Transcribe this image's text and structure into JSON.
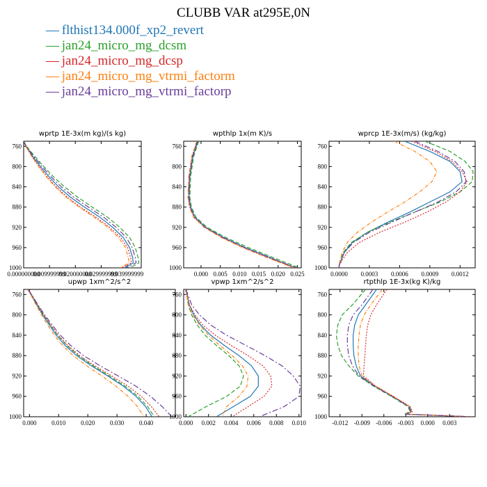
{
  "figure": {
    "title": "CLUBB VAR at295E,0N"
  },
  "legend": [
    {
      "label": "flthist134.000f_xp2_revert",
      "color": "#1f77b4"
    },
    {
      "label": "jan24_micro_mg_dcsm",
      "color": "#2ca02c"
    },
    {
      "label": "jan24_micro_mg_dcsp",
      "color": "#d62728"
    },
    {
      "label": "jan24_micro_mg_vtrmi_factorm",
      "color": "#ff7f0e"
    },
    {
      "label": "jan24_micro_mg_vtrmi_factorp",
      "color": "#6a3d9a"
    }
  ],
  "chart_data": [
    {
      "type": "line",
      "title": "wprtp  1E-3x(m kg)/(s kg)",
      "ylim": [
        1000,
        750
      ],
      "y_ticks": [
        "760",
        "800",
        "840",
        "880",
        "920",
        "960",
        "1000"
      ],
      "xlim": [
        0.0,
        0.0455
      ],
      "x_ticks": [
        {
          "v": 0.0,
          "label": "0.000000000"
        },
        {
          "v": 0.01,
          "label": "0.009999999"
        },
        {
          "v": 0.02,
          "label": "0.020000000"
        },
        {
          "v": 0.03,
          "label": "0.029999999"
        },
        {
          "v": 0.04,
          "label": "0.039999999"
        }
      ],
      "y": [
        750,
        760,
        780,
        800,
        820,
        840,
        860,
        880,
        900,
        920,
        940,
        960,
        980,
        990,
        995,
        1000
      ],
      "series": [
        {
          "name": "flthist134.000f_xp2_revert",
          "values": [
            0.0,
            0.0009,
            0.0035,
            0.0065,
            0.0098,
            0.0135,
            0.018,
            0.0235,
            0.0295,
            0.0345,
            0.0385,
            0.041,
            0.0422,
            0.0424,
            0.0408,
            0.039
          ]
        },
        {
          "name": "jan24_micro_mg_dcsm",
          "values": [
            0.0,
            0.0011,
            0.0043,
            0.0078,
            0.0115,
            0.0158,
            0.0208,
            0.0265,
            0.0325,
            0.0372,
            0.041,
            0.0432,
            0.0443,
            0.0446,
            0.043,
            0.041
          ]
        },
        {
          "name": "jan24_micro_mg_dcsp",
          "values": [
            0.0,
            0.0008,
            0.0032,
            0.006,
            0.0091,
            0.0126,
            0.0168,
            0.022,
            0.028,
            0.0333,
            0.0375,
            0.0402,
            0.0414,
            0.0417,
            0.0398,
            0.038
          ]
        },
        {
          "name": "jan24_micro_mg_vtrmi_factorm",
          "values": [
            0.0,
            0.0008,
            0.0031,
            0.0058,
            0.0088,
            0.0122,
            0.0163,
            0.0214,
            0.0273,
            0.0326,
            0.0367,
            0.0394,
            0.0405,
            0.0408,
            0.039,
            0.0372
          ]
        },
        {
          "name": "jan24_micro_mg_vtrmi_factorp",
          "values": [
            0.0,
            0.001,
            0.0039,
            0.0072,
            0.0106,
            0.0146,
            0.0193,
            0.025,
            0.031,
            0.0358,
            0.0397,
            0.042,
            0.0432,
            0.0435,
            0.0418,
            0.04
          ]
        }
      ]
    },
    {
      "type": "line",
      "title": "wpthlp  1x(m K)/s",
      "ylim": [
        1000,
        750
      ],
      "y_ticks": [
        "760",
        "800",
        "840",
        "880",
        "920",
        "960",
        "1000"
      ],
      "xlim": [
        -0.0045,
        0.026
      ],
      "x_ticks": [
        {
          "v": 0.0,
          "label": "0.000"
        },
        {
          "v": 0.005,
          "label": "0.005"
        },
        {
          "v": 0.01,
          "label": "0.010"
        },
        {
          "v": 0.015,
          "label": "0.015"
        },
        {
          "v": 0.02,
          "label": "0.020"
        },
        {
          "v": 0.025,
          "label": "0.025"
        }
      ],
      "y": [
        750,
        780,
        820,
        860,
        880,
        900,
        920,
        940,
        960,
        980,
        1000
      ],
      "series": [
        {
          "name": "flthist134.000f_xp2_revert",
          "values": [
            -0.0008,
            -0.0021,
            -0.0029,
            -0.0031,
            -0.0027,
            -0.0016,
            0.0012,
            0.0058,
            0.0115,
            0.018,
            0.0245
          ]
        },
        {
          "name": "jan24_micro_mg_dcsm",
          "values": [
            -0.0006,
            -0.0019,
            -0.0027,
            -0.0029,
            -0.0025,
            -0.0013,
            0.0016,
            0.0064,
            0.0123,
            0.0188,
            0.0255
          ]
        },
        {
          "name": "jan24_micro_mg_dcsp",
          "values": [
            -0.001,
            -0.0023,
            -0.0031,
            -0.0033,
            -0.0029,
            -0.0018,
            0.001,
            0.0055,
            0.0111,
            0.0175,
            0.0243
          ]
        },
        {
          "name": "jan24_micro_mg_vtrmi_factorm",
          "values": [
            -0.0011,
            -0.0024,
            -0.0032,
            -0.0034,
            -0.003,
            -0.002,
            0.0008,
            0.0052,
            0.0108,
            0.0172,
            0.024
          ]
        },
        {
          "name": "jan24_micro_mg_vtrmi_factorp",
          "values": [
            -0.0009,
            -0.0022,
            -0.003,
            -0.0032,
            -0.0028,
            -0.0017,
            0.0011,
            0.0057,
            0.0113,
            0.0178,
            0.0248
          ]
        }
      ]
    },
    {
      "type": "line",
      "title": "wprcp  1E-3x(m/s) (kg/kg)",
      "ylim": [
        1000,
        750
      ],
      "y_ticks": [
        "760",
        "800",
        "840",
        "880",
        "920",
        "960",
        "1000"
      ],
      "xlim": [
        -0.0001,
        0.00135
      ],
      "x_ticks": [
        {
          "v": 0.0,
          "label": "0.0000"
        },
        {
          "v": 0.0003,
          "label": "0.0003"
        },
        {
          "v": 0.0006,
          "label": "0.0006"
        },
        {
          "v": 0.0009,
          "label": "0.0009"
        },
        {
          "v": 0.0012,
          "label": "0.0012"
        }
      ],
      "y": [
        750,
        770,
        790,
        810,
        830,
        850,
        870,
        890,
        910,
        930,
        950,
        970,
        985,
        995,
        1000
      ],
      "series": [
        {
          "name": "flthist134.000f_xp2_revert",
          "values": [
            0.00065,
            0.0009,
            0.0011,
            0.0012,
            0.00122,
            0.0011,
            0.0009,
            0.0007,
            0.00048,
            0.00028,
            0.00013,
            5e-05,
            2e-05,
            0.0,
            0.0
          ]
        },
        {
          "name": "jan24_micro_mg_dcsm",
          "values": [
            0.00085,
            0.0011,
            0.00125,
            0.00133,
            0.00132,
            0.0012,
            0.001,
            0.00075,
            0.0005,
            0.00028,
            0.00012,
            4e-05,
            1e-05,
            0.0,
            0.0
          ]
        },
        {
          "name": "jan24_micro_mg_dcsp",
          "values": [
            0.00072,
            0.00095,
            0.00112,
            0.00122,
            0.00127,
            0.0012,
            0.00106,
            0.00087,
            0.00065,
            0.0004,
            0.0002,
            8e-05,
            3e-05,
            0.0,
            0.0
          ]
        },
        {
          "name": "jan24_micro_mg_vtrmi_factorm",
          "values": [
            0.00055,
            0.00075,
            0.0009,
            0.00097,
            0.00092,
            0.0008,
            0.00065,
            0.00048,
            0.00032,
            0.00018,
            8e-05,
            3e-05,
            1e-05,
            0.0,
            0.0
          ]
        },
        {
          "name": "jan24_micro_mg_vtrmi_factorp",
          "values": [
            0.00075,
            0.00098,
            0.00115,
            0.00124,
            0.00126,
            0.00116,
            0.00098,
            0.00075,
            0.00052,
            0.0003,
            0.00014,
            5e-05,
            2e-05,
            0.0,
            0.0
          ]
        }
      ]
    },
    {
      "type": "line",
      "title": "upwp  1xm^2/s^2",
      "ylim": [
        1000,
        750
      ],
      "y_ticks": [
        "760",
        "800",
        "840",
        "880",
        "920",
        "960",
        "1000"
      ],
      "xlim": [
        -0.002,
        0.05
      ],
      "x_ticks": [
        {
          "v": 0.0,
          "label": "0.000"
        },
        {
          "v": 0.01,
          "label": "0.010"
        },
        {
          "v": 0.02,
          "label": "0.020"
        },
        {
          "v": 0.03,
          "label": "0.030"
        },
        {
          "v": 0.04,
          "label": "0.040"
        }
      ],
      "y": [
        750,
        760,
        780,
        800,
        820,
        840,
        860,
        880,
        900,
        920,
        940,
        960,
        980,
        1000
      ],
      "series": [
        {
          "name": "flthist134.000f_xp2_revert",
          "values": [
            -0.0005,
            0.0005,
            0.0025,
            0.0045,
            0.0068,
            0.0092,
            0.0122,
            0.0162,
            0.0212,
            0.0268,
            0.0322,
            0.0365,
            0.0398,
            0.042
          ]
        },
        {
          "name": "jan24_micro_mg_dcsm",
          "values": [
            -0.0005,
            0.0006,
            0.0027,
            0.0048,
            0.0072,
            0.0097,
            0.0128,
            0.0168,
            0.0218,
            0.0274,
            0.0328,
            0.0372,
            0.0405,
            0.0428
          ]
        },
        {
          "name": "jan24_micro_mg_dcsp",
          "values": [
            -0.0004,
            0.0007,
            0.0028,
            0.0049,
            0.0073,
            0.0099,
            0.0131,
            0.0172,
            0.0224,
            0.0282,
            0.0338,
            0.0383,
            0.0418,
            0.0445
          ]
        },
        {
          "name": "jan24_micro_mg_vtrmi_factorm",
          "values": [
            -0.0006,
            0.0004,
            0.0022,
            0.0041,
            0.0062,
            0.0085,
            0.0113,
            0.015,
            0.0196,
            0.0248,
            0.0297,
            0.0338,
            0.037,
            0.0392
          ]
        },
        {
          "name": "jan24_micro_mg_vtrmi_factorp",
          "values": [
            -0.0004,
            0.0007,
            0.0029,
            0.0052,
            0.0078,
            0.0106,
            0.0141,
            0.0186,
            0.0242,
            0.0304,
            0.0365,
            0.0415,
            0.0455,
            0.0488
          ]
        }
      ]
    },
    {
      "type": "line",
      "title": "vpwp  1xm^2/s^2",
      "ylim": [
        1000,
        750
      ],
      "y_ticks": [
        "760",
        "800",
        "840",
        "880",
        "920",
        "960",
        "1000"
      ],
      "xlim": [
        -0.0002,
        0.0102
      ],
      "x_ticks": [
        {
          "v": 0.0,
          "label": "0.000"
        },
        {
          "v": 0.002,
          "label": "0.002"
        },
        {
          "v": 0.004,
          "label": "0.004"
        },
        {
          "v": 0.006,
          "label": "0.006"
        },
        {
          "v": 0.008,
          "label": "0.008"
        },
        {
          "v": 0.01,
          "label": "0.010"
        }
      ],
      "y": [
        750,
        780,
        800,
        820,
        840,
        860,
        880,
        900,
        920,
        940,
        960,
        980,
        1000
      ],
      "series": [
        {
          "name": "flthist134.000f_xp2_revert",
          "values": [
            0.0,
            0.0003,
            0.0007,
            0.0013,
            0.0022,
            0.0034,
            0.0047,
            0.0058,
            0.0064,
            0.0064,
            0.0057,
            0.0042,
            0.0027
          ]
        },
        {
          "name": "jan24_micro_mg_dcsm",
          "values": [
            0.0,
            0.0002,
            0.0005,
            0.001,
            0.0017,
            0.0027,
            0.0038,
            0.0047,
            0.0051,
            0.0048,
            0.0036,
            0.0018,
            0.0002
          ]
        },
        {
          "name": "jan24_micro_mg_dcsp",
          "values": [
            0.0,
            0.0003,
            0.0008,
            0.0015,
            0.0026,
            0.004,
            0.0055,
            0.0068,
            0.0075,
            0.0076,
            0.0069,
            0.0055,
            0.0041
          ]
        },
        {
          "name": "jan24_micro_mg_vtrmi_factorm",
          "values": [
            0.0,
            0.0002,
            0.0006,
            0.0012,
            0.002,
            0.003,
            0.0041,
            0.005,
            0.0055,
            0.0054,
            0.0047,
            0.0036,
            0.0032
          ]
        },
        {
          "name": "jan24_micro_mg_vtrmi_factorp",
          "values": [
            0.0,
            0.0005,
            0.0012,
            0.0022,
            0.0036,
            0.0053,
            0.007,
            0.0085,
            0.0095,
            0.0101,
            0.01,
            0.0087,
            0.0065
          ]
        }
      ]
    },
    {
      "type": "line",
      "title": "rtpthlp  1E-3x(kg K)/kg",
      "ylim": [
        1000,
        750
      ],
      "y_ticks": [
        "760",
        "800",
        "840",
        "880",
        "920",
        "960",
        "1000"
      ],
      "xlim": [
        -0.0135,
        0.0065
      ],
      "x_ticks": [
        {
          "v": -0.012,
          "label": "-0.012"
        },
        {
          "v": -0.009,
          "label": "-0.009"
        },
        {
          "v": -0.006,
          "label": "-0.006"
        },
        {
          "v": -0.003,
          "label": "-0.003"
        },
        {
          "v": 0.0,
          "label": "0.000"
        },
        {
          "v": 0.003,
          "label": "0.003"
        }
      ],
      "y": [
        750,
        780,
        800,
        820,
        840,
        860,
        880,
        900,
        920,
        940,
        960,
        980,
        990,
        995,
        1000
      ],
      "series": [
        {
          "name": "flthist134.000f_xp2_revert",
          "values": [
            -0.007,
            -0.0085,
            -0.0095,
            -0.01,
            -0.0102,
            -0.0102,
            -0.0101,
            -0.0098,
            -0.0092,
            -0.0072,
            -0.0048,
            -0.0025,
            -0.0022,
            -0.003,
            0.006
          ]
        },
        {
          "name": "jan24_micro_mg_dcsm",
          "values": [
            -0.0085,
            -0.0103,
            -0.0117,
            -0.0123,
            -0.0125,
            -0.0123,
            -0.0118,
            -0.0108,
            -0.0095,
            -0.0074,
            -0.005,
            -0.0027,
            -0.0024,
            -0.0032,
            0.006
          ]
        },
        {
          "name": "jan24_micro_mg_dcsp",
          "values": [
            -0.0056,
            -0.007,
            -0.0078,
            -0.0082,
            -0.0084,
            -0.0085,
            -0.0086,
            -0.0087,
            -0.0088,
            -0.0071,
            -0.0047,
            -0.0024,
            -0.0021,
            -0.0029,
            0.006
          ]
        },
        {
          "name": "jan24_micro_mg_vtrmi_factorm",
          "values": [
            -0.0062,
            -0.0078,
            -0.0087,
            -0.0092,
            -0.0094,
            -0.0095,
            -0.0095,
            -0.0094,
            -0.009,
            -0.0071,
            -0.0048,
            -0.0025,
            -0.0022,
            -0.003,
            0.006
          ]
        },
        {
          "name": "jan24_micro_mg_vtrmi_factorp",
          "values": [
            -0.0075,
            -0.009,
            -0.0102,
            -0.0108,
            -0.011,
            -0.011,
            -0.0108,
            -0.0103,
            -0.0094,
            -0.0073,
            -0.0049,
            -0.0026,
            -0.0023,
            -0.0031,
            0.006
          ]
        }
      ]
    }
  ]
}
